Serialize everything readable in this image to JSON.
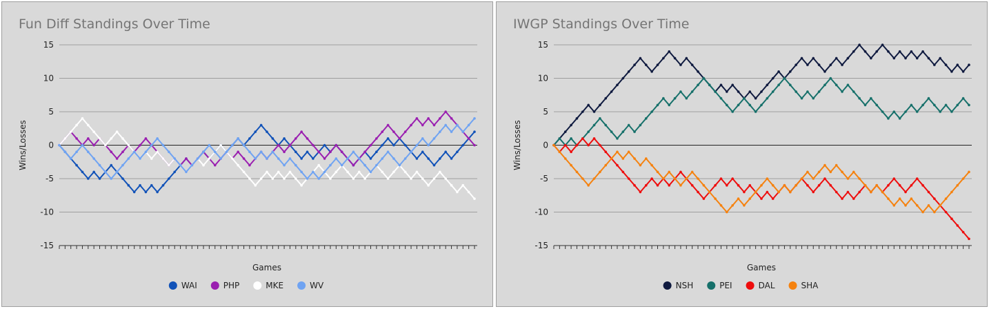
{
  "chart_data": [
    {
      "type": "line",
      "title": "Fun Diff Standings Over Time",
      "x_label": "Games",
      "y_label": "Wins/Losses",
      "ylim": [
        -15,
        15
      ],
      "yticks": [
        -15,
        -10,
        -5,
        0,
        5,
        10,
        15
      ],
      "grid": true,
      "legend": "bottom",
      "series": [
        {
          "name": "WAI",
          "color": "#1152b8",
          "values": [
            0,
            -1,
            -2,
            -3,
            -4,
            -5,
            -4,
            -5,
            -4,
            -3,
            -4,
            -5,
            -6,
            -7,
            -6,
            -7,
            -6,
            -7,
            -6,
            -5,
            -4,
            -3,
            -2,
            -3,
            -2,
            -1,
            -2,
            -1,
            0,
            -1,
            0,
            1,
            0,
            1,
            2,
            3,
            2,
            1,
            0,
            1,
            0,
            -1,
            -2,
            -1,
            -2,
            -1,
            0,
            -1,
            0,
            -1,
            -2,
            -3,
            -2,
            -1,
            -2,
            -1,
            0,
            1,
            0,
            1,
            0,
            -1,
            -2,
            -1,
            -2,
            -3,
            -2,
            -1,
            -2,
            -1,
            0,
            1,
            2
          ]
        },
        {
          "name": "PHP",
          "color": "#9a1fb0",
          "values": [
            0,
            1,
            2,
            1,
            0,
            1,
            0,
            1,
            0,
            -1,
            -2,
            -1,
            0,
            -1,
            0,
            1,
            0,
            -1,
            -2,
            -3,
            -2,
            -3,
            -2,
            -3,
            -2,
            -1,
            -2,
            -3,
            -2,
            -1,
            -2,
            -1,
            -2,
            -3,
            -2,
            -1,
            -2,
            -1,
            0,
            -1,
            0,
            1,
            2,
            1,
            0,
            -1,
            -2,
            -1,
            0,
            -1,
            -2,
            -3,
            -2,
            -1,
            0,
            1,
            2,
            3,
            2,
            1,
            2,
            3,
            4,
            3,
            4,
            3,
            4,
            5,
            4,
            3,
            2,
            1,
            0
          ]
        },
        {
          "name": "MKE",
          "color": "#ffffff",
          "values": [
            0,
            1,
            2,
            3,
            4,
            3,
            2,
            1,
            0,
            1,
            2,
            1,
            0,
            -1,
            -2,
            -1,
            -2,
            -1,
            -2,
            -3,
            -2,
            -3,
            -4,
            -3,
            -2,
            -3,
            -2,
            -1,
            0,
            -1,
            -2,
            -3,
            -4,
            -5,
            -6,
            -5,
            -4,
            -5,
            -4,
            -5,
            -4,
            -5,
            -6,
            -5,
            -4,
            -3,
            -4,
            -5,
            -4,
            -3,
            -4,
            -5,
            -4,
            -5,
            -4,
            -3,
            -4,
            -5,
            -4,
            -3,
            -4,
            -5,
            -4,
            -5,
            -6,
            -5,
            -4,
            -5,
            -6,
            -7,
            -6,
            -7,
            -8
          ]
        },
        {
          "name": "WV",
          "color": "#6fa3f2",
          "values": [
            0,
            -1,
            -2,
            -1,
            0,
            -1,
            -2,
            -3,
            -4,
            -5,
            -4,
            -3,
            -2,
            -1,
            -2,
            -1,
            0,
            1,
            0,
            -1,
            -2,
            -3,
            -4,
            -3,
            -2,
            -1,
            0,
            -1,
            -2,
            -1,
            0,
            1,
            0,
            -1,
            -2,
            -1,
            -2,
            -1,
            -2,
            -3,
            -2,
            -3,
            -4,
            -5,
            -4,
            -5,
            -4,
            -3,
            -2,
            -3,
            -2,
            -1,
            -2,
            -3,
            -4,
            -3,
            -2,
            -1,
            -2,
            -3,
            -2,
            -1,
            0,
            1,
            0,
            1,
            2,
            3,
            2,
            3,
            2,
            3,
            4
          ]
        }
      ]
    },
    {
      "type": "line",
      "title": "IWGP Standings Over Time",
      "x_label": "Games",
      "y_label": "Wins/Losses",
      "ylim": [
        -15,
        15
      ],
      "yticks": [
        -15,
        -10,
        -5,
        0,
        5,
        10,
        15
      ],
      "grid": true,
      "legend": "bottom",
      "series": [
        {
          "name": "NSH",
          "color": "#0f1a3f",
          "values": [
            0,
            1,
            2,
            3,
            4,
            5,
            6,
            5,
            6,
            7,
            8,
            9,
            10,
            11,
            12,
            13,
            12,
            11,
            12,
            13,
            14,
            13,
            12,
            13,
            12,
            11,
            10,
            9,
            8,
            9,
            8,
            9,
            8,
            7,
            8,
            7,
            8,
            9,
            10,
            11,
            10,
            11,
            12,
            13,
            12,
            13,
            12,
            11,
            12,
            13,
            12,
            13,
            14,
            15,
            14,
            13,
            14,
            15,
            14,
            13,
            14,
            13,
            14,
            13,
            14,
            13,
            12,
            13,
            12,
            11,
            12,
            11,
            12
          ]
        },
        {
          "name": "PEI",
          "color": "#16706a",
          "values": [
            0,
            1,
            0,
            1,
            0,
            1,
            2,
            3,
            4,
            3,
            2,
            1,
            2,
            3,
            2,
            3,
            4,
            5,
            6,
            7,
            6,
            7,
            8,
            7,
            8,
            9,
            10,
            9,
            8,
            7,
            6,
            5,
            6,
            7,
            6,
            5,
            6,
            7,
            8,
            9,
            10,
            9,
            8,
            7,
            8,
            7,
            8,
            9,
            10,
            9,
            8,
            9,
            8,
            7,
            6,
            7,
            6,
            5,
            4,
            5,
            4,
            5,
            6,
            5,
            6,
            7,
            6,
            5,
            6,
            5,
            6,
            7,
            6
          ]
        },
        {
          "name": "DAL",
          "color": "#ee0d0d",
          "values": [
            0,
            -1,
            0,
            -1,
            0,
            1,
            0,
            1,
            0,
            -1,
            -2,
            -3,
            -4,
            -5,
            -6,
            -7,
            -6,
            -5,
            -6,
            -5,
            -6,
            -5,
            -4,
            -5,
            -6,
            -7,
            -8,
            -7,
            -6,
            -5,
            -6,
            -5,
            -6,
            -7,
            -6,
            -7,
            -8,
            -7,
            -8,
            -7,
            -6,
            -7,
            -6,
            -5,
            -6,
            -7,
            -6,
            -5,
            -6,
            -7,
            -8,
            -7,
            -8,
            -7,
            -6,
            -7,
            -6,
            -7,
            -6,
            -5,
            -6,
            -7,
            -6,
            -5,
            -6,
            -7,
            -8,
            -9,
            -10,
            -11,
            -12,
            -13,
            -14
          ]
        },
        {
          "name": "SHA",
          "color": "#f5820f",
          "values": [
            0,
            -1,
            -2,
            -3,
            -4,
            -5,
            -6,
            -5,
            -4,
            -3,
            -2,
            -1,
            -2,
            -1,
            -2,
            -3,
            -2,
            -3,
            -4,
            -5,
            -4,
            -5,
            -6,
            -5,
            -4,
            -5,
            -6,
            -7,
            -8,
            -9,
            -10,
            -9,
            -8,
            -9,
            -8,
            -7,
            -6,
            -5,
            -6,
            -7,
            -6,
            -7,
            -6,
            -5,
            -4,
            -5,
            -4,
            -3,
            -4,
            -3,
            -4,
            -5,
            -4,
            -5,
            -6,
            -7,
            -6,
            -7,
            -8,
            -9,
            -8,
            -9,
            -8,
            -9,
            -10,
            -9,
            -10,
            -9,
            -8,
            -7,
            -6,
            -5,
            -4
          ]
        }
      ]
    }
  ]
}
